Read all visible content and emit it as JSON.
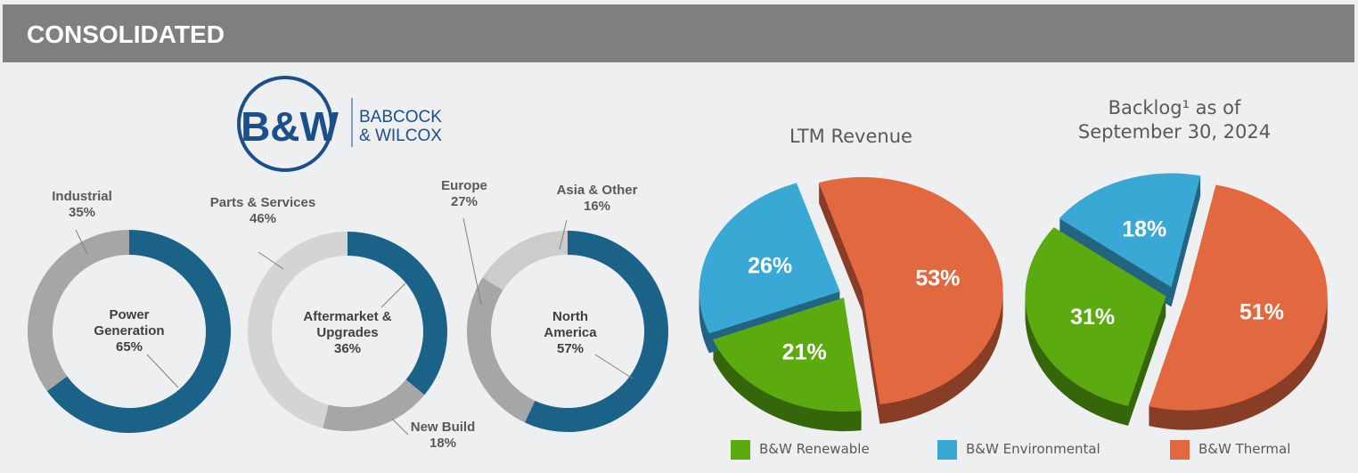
{
  "header": "CONSOLIDATED",
  "logo": {
    "mark": "B&W",
    "line1": "BABCOCK",
    "line2": "& WILCOX"
  },
  "chart_data": [
    {
      "type": "donut",
      "categories": [
        "Power Generation",
        "Industrial"
      ],
      "values": [
        65,
        35
      ],
      "value_labels": [
        "65%",
        "35%"
      ],
      "colors": [
        "#1b6288",
        "#a6a6a6"
      ]
    },
    {
      "type": "donut",
      "categories": [
        "Aftermarket & Upgrades",
        "New Build",
        "Parts & Services"
      ],
      "values": [
        36,
        18,
        46
      ],
      "value_labels": [
        "36%",
        "18%",
        "46%"
      ],
      "colors": [
        "#1b6288",
        "#a6a6a6",
        "#d4d4d4"
      ]
    },
    {
      "type": "donut",
      "categories": [
        "North America",
        "Europe",
        "Asia & Other"
      ],
      "values": [
        57,
        27,
        16
      ],
      "value_labels": [
        "57%",
        "27%",
        "16%"
      ],
      "colors": [
        "#1b6288",
        "#a6a6a6",
        "#cccccc"
      ]
    },
    {
      "type": "pie3d",
      "title": "LTM Revenue",
      "categories": [
        "B&W Thermal",
        "B&W Renewable",
        "B&W Environmental"
      ],
      "values": [
        53,
        21,
        26
      ],
      "value_labels": [
        "53%",
        "21%",
        "26%"
      ],
      "colors": [
        "#e2683f",
        "#5aaa10",
        "#3aa8d5"
      ]
    },
    {
      "type": "pie3d",
      "title": "Backlog¹ as of September 30, 2024",
      "categories": [
        "B&W Thermal",
        "B&W Renewable",
        "B&W Environmental"
      ],
      "values": [
        51,
        31,
        18
      ],
      "value_labels": [
        "51%",
        "31%",
        "18%"
      ],
      "colors": [
        "#e2683f",
        "#5aaa10",
        "#3aa8d5"
      ]
    }
  ]
}
